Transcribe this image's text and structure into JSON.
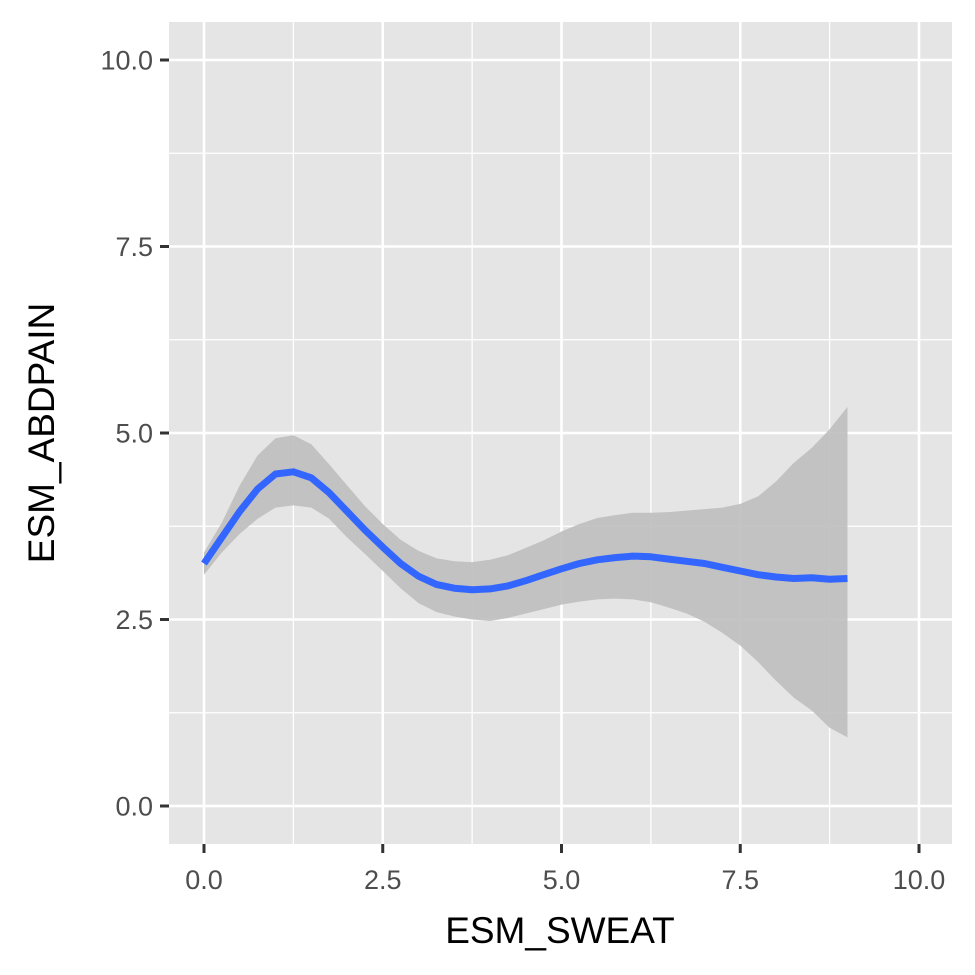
{
  "chart_data": {
    "type": "line",
    "title": "",
    "xlabel": "ESM_SWEAT",
    "ylabel": "ESM_ABDPAIN",
    "xlim": [
      -1,
      10.2
    ],
    "ylim": [
      -1,
      10.3
    ],
    "xticks": [
      "0.0",
      "2.5",
      "5.0",
      "7.5",
      "10.0"
    ],
    "yticks": [
      "0.0",
      "2.5",
      "5.0",
      "7.5",
      "10.0"
    ],
    "grid": true,
    "series": [
      {
        "values": [
          {
            "x": 0.0,
            "y": 3.25,
            "lo": 3.1,
            "hi": 3.4
          },
          {
            "x": 0.25,
            "y": 3.6,
            "lo": 3.4,
            "hi": 3.8
          },
          {
            "x": 0.5,
            "y": 3.95,
            "lo": 3.65,
            "hi": 4.3
          },
          {
            "x": 0.75,
            "y": 4.25,
            "lo": 3.85,
            "hi": 4.7
          },
          {
            "x": 1.0,
            "y": 4.45,
            "lo": 4.0,
            "hi": 4.93
          },
          {
            "x": 1.25,
            "y": 4.48,
            "lo": 4.03,
            "hi": 4.97
          },
          {
            "x": 1.5,
            "y": 4.4,
            "lo": 4.0,
            "hi": 4.85
          },
          {
            "x": 1.75,
            "y": 4.2,
            "lo": 3.85,
            "hi": 4.58
          },
          {
            "x": 2.0,
            "y": 3.95,
            "lo": 3.6,
            "hi": 4.3
          },
          {
            "x": 2.25,
            "y": 3.7,
            "lo": 3.38,
            "hi": 4.02
          },
          {
            "x": 2.5,
            "y": 3.47,
            "lo": 3.15,
            "hi": 3.78
          },
          {
            "x": 2.75,
            "y": 3.25,
            "lo": 2.92,
            "hi": 3.57
          },
          {
            "x": 3.0,
            "y": 3.08,
            "lo": 2.72,
            "hi": 3.42
          },
          {
            "x": 3.25,
            "y": 2.97,
            "lo": 2.6,
            "hi": 3.32
          },
          {
            "x": 3.5,
            "y": 2.92,
            "lo": 2.54,
            "hi": 3.28
          },
          {
            "x": 3.75,
            "y": 2.9,
            "lo": 2.5,
            "hi": 3.27
          },
          {
            "x": 4.0,
            "y": 2.91,
            "lo": 2.48,
            "hi": 3.3
          },
          {
            "x": 4.25,
            "y": 2.95,
            "lo": 2.52,
            "hi": 3.36
          },
          {
            "x": 4.5,
            "y": 3.02,
            "lo": 2.58,
            "hi": 3.46
          },
          {
            "x": 4.75,
            "y": 3.1,
            "lo": 2.64,
            "hi": 3.56
          },
          {
            "x": 5.0,
            "y": 3.18,
            "lo": 2.7,
            "hi": 3.68
          },
          {
            "x": 5.25,
            "y": 3.25,
            "lo": 2.74,
            "hi": 3.78
          },
          {
            "x": 5.5,
            "y": 3.3,
            "lo": 2.77,
            "hi": 3.86
          },
          {
            "x": 5.75,
            "y": 3.33,
            "lo": 2.78,
            "hi": 3.9
          },
          {
            "x": 6.0,
            "y": 3.35,
            "lo": 2.77,
            "hi": 3.93
          },
          {
            "x": 6.25,
            "y": 3.34,
            "lo": 2.73,
            "hi": 3.93
          },
          {
            "x": 6.5,
            "y": 3.31,
            "lo": 2.66,
            "hi": 3.94
          },
          {
            "x": 6.75,
            "y": 3.28,
            "lo": 2.58,
            "hi": 3.96
          },
          {
            "x": 7.0,
            "y": 3.25,
            "lo": 2.47,
            "hi": 3.98
          },
          {
            "x": 7.25,
            "y": 3.2,
            "lo": 2.32,
            "hi": 4.0
          },
          {
            "x": 7.5,
            "y": 3.15,
            "lo": 2.15,
            "hi": 4.05
          },
          {
            "x": 7.75,
            "y": 3.1,
            "lo": 1.93,
            "hi": 4.15
          },
          {
            "x": 8.0,
            "y": 3.07,
            "lo": 1.68,
            "hi": 4.35
          },
          {
            "x": 8.25,
            "y": 3.05,
            "lo": 1.45,
            "hi": 4.6
          },
          {
            "x": 8.5,
            "y": 3.06,
            "lo": 1.28,
            "hi": 4.8
          },
          {
            "x": 8.75,
            "y": 3.04,
            "lo": 1.05,
            "hi": 5.05
          },
          {
            "x": 9.0,
            "y": 3.05,
            "lo": 0.92,
            "hi": 5.35
          }
        ]
      }
    ]
  },
  "colors": {
    "panel": "#e5e5e5",
    "grid": "#ffffff",
    "line": "#3366ff",
    "ribbon": "#bebebe",
    "tick_text": "#4d4d4d",
    "axis_title": "#000000"
  }
}
